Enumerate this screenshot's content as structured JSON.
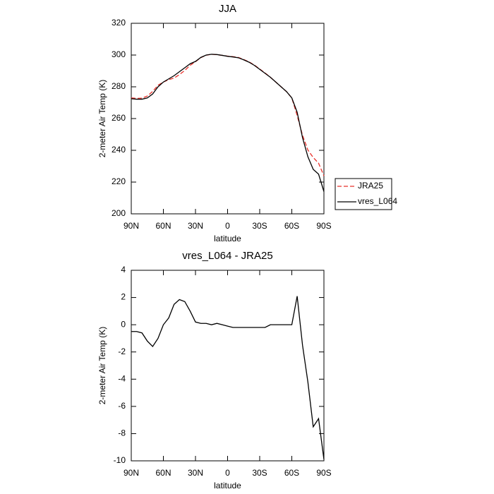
{
  "chart_data": [
    {
      "type": "line",
      "title": "JJA",
      "xlabel": "latitude",
      "ylabel": "2-meter Air Temp (K)",
      "x": [
        90,
        85,
        80,
        75,
        70,
        65,
        60,
        55,
        50,
        45,
        40,
        35,
        30,
        25,
        20,
        15,
        10,
        5,
        0,
        -5,
        -10,
        -15,
        -20,
        -25,
        -30,
        -35,
        -40,
        -45,
        -50,
        -55,
        -60,
        -65,
        -70,
        -75,
        -80,
        -85,
        -90
      ],
      "series": [
        {
          "name": "JRA25",
          "color": "#e8302a",
          "dash": true,
          "values": [
            273.0,
            272.7,
            272.8,
            274.2,
            277.1,
            281.0,
            283.0,
            284.5,
            285.5,
            287.7,
            290.3,
            293.5,
            295.8,
            298.4,
            299.9,
            300.5,
            300.2,
            299.8,
            299.3,
            299.0,
            298.5,
            297.2,
            295.7,
            293.7,
            291.2,
            288.7,
            286,
            283,
            280,
            277,
            273,
            261.9,
            249.5,
            240.2,
            235.5,
            231.9,
            223.9
          ]
        },
        {
          "name": "vres_L064",
          "color": "#000000",
          "dash": false,
          "values": [
            272.5,
            272.2,
            272.2,
            273,
            275.5,
            280,
            283,
            285,
            287,
            289.5,
            292,
            294.5,
            296,
            298.5,
            300,
            300.5,
            300.3,
            299.8,
            299.2,
            298.8,
            298.3,
            297,
            295.5,
            293.5,
            291,
            288.5,
            286,
            283,
            280,
            277,
            273,
            264,
            248,
            236,
            228,
            225,
            214
          ]
        }
      ],
      "xlim": [
        90,
        -90
      ],
      "ylim": [
        200,
        320
      ],
      "xticks": [
        {
          "value": 90,
          "label": "90N"
        },
        {
          "value": 60,
          "label": "60N"
        },
        {
          "value": 30,
          "label": "30N"
        },
        0,
        {
          "value": -30,
          "label": "30S"
        },
        {
          "value": -60,
          "label": "60S"
        },
        {
          "value": -90,
          "label": "90S"
        }
      ],
      "yticks": [
        200,
        220,
        240,
        260,
        280,
        300,
        320
      ],
      "legend": "right"
    },
    {
      "type": "line",
      "title": "vres_L064 - JRA25",
      "xlabel": "latitude",
      "ylabel": "2-meter Air Temp (K)",
      "x": [
        90,
        85,
        80,
        75,
        70,
        65,
        60,
        55,
        50,
        45,
        40,
        35,
        30,
        25,
        20,
        15,
        10,
        5,
        0,
        -5,
        -10,
        -15,
        -20,
        -25,
        -30,
        -35,
        -40,
        -45,
        -50,
        -55,
        -60,
        -65,
        -70,
        -75,
        -80,
        -85,
        -90
      ],
      "color": "#000000",
      "values": [
        -0.5,
        -0.5,
        -0.6,
        -1.2,
        -1.6,
        -1.0,
        0,
        0.5,
        1.5,
        1.85,
        1.7,
        1.0,
        0.2,
        0.1,
        0.1,
        0.0,
        0.1,
        0.0,
        -0.1,
        -0.2,
        -0.2,
        -0.2,
        -0.2,
        -0.2,
        -0.2,
        -0.2,
        0.0,
        0.0,
        0.0,
        0.0,
        0.0,
        2.1,
        -1.5,
        -4.2,
        -7.5,
        -6.9,
        -9.9
      ],
      "xlim": [
        90,
        -90
      ],
      "ylim": [
        -10,
        4
      ],
      "xticks": [
        {
          "value": 90,
          "label": "90N"
        },
        {
          "value": 60,
          "label": "60N"
        },
        {
          "value": 30,
          "label": "30N"
        },
        0,
        {
          "value": -30,
          "label": "30S"
        },
        {
          "value": -60,
          "label": "60S"
        },
        {
          "value": -90,
          "label": "90S"
        }
      ],
      "yticks": [
        -10,
        -8,
        -6,
        -4,
        -2,
        0,
        2,
        4
      ]
    }
  ]
}
